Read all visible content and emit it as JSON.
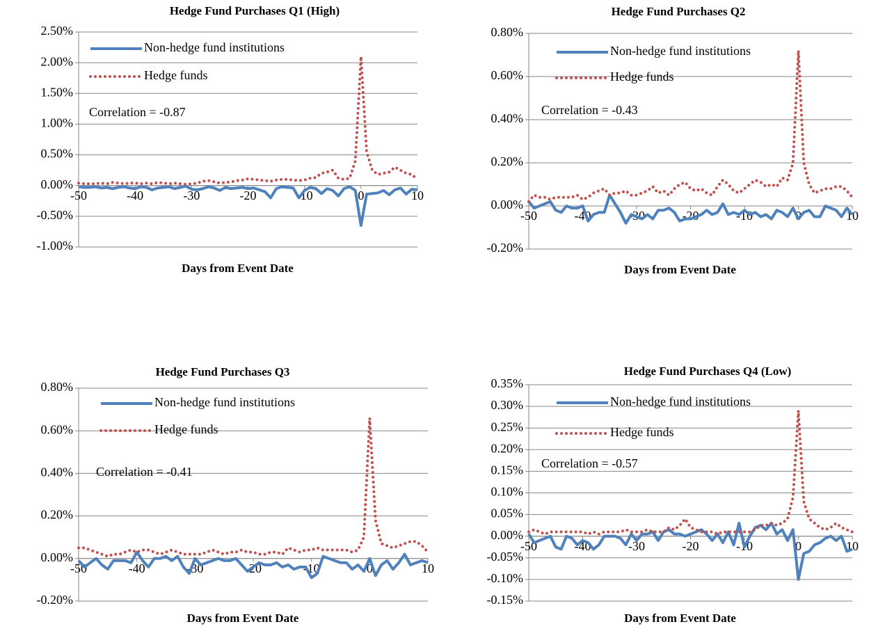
{
  "chart_data": [
    {
      "type": "line",
      "title": "Hedge Fund Purchases Q1 (High)",
      "x_label": "Days from Event Date",
      "annotation": "Correlation  = -0.87",
      "x": [
        -50,
        -49,
        -48,
        -47,
        -46,
        -45,
        -44,
        -43,
        -42,
        -41,
        -40,
        -39,
        -38,
        -37,
        -36,
        -35,
        -34,
        -33,
        -32,
        -31,
        -30,
        -29,
        -28,
        -27,
        -26,
        -25,
        -24,
        -23,
        -22,
        -21,
        -20,
        -19,
        -18,
        -17,
        -16,
        -15,
        -14,
        -13,
        -12,
        -11,
        -10,
        -9,
        -8,
        -7,
        -6,
        -5,
        -4,
        -3,
        -2,
        -1,
        0,
        1,
        2,
        3,
        4,
        5,
        6,
        7,
        8,
        9,
        10
      ],
      "xlim": [
        -50,
        10
      ],
      "xticks": [
        -50,
        -40,
        -30,
        -20,
        -10,
        0,
        10
      ],
      "ylim": [
        -1,
        2.5
      ],
      "yticks": [
        {
          "value": 2.5,
          "label": "2.50%"
        },
        {
          "value": 2,
          "label": "2.00%"
        },
        {
          "value": 1.5,
          "label": "1.50%"
        },
        {
          "value": 1,
          "label": "1.00%"
        },
        {
          "value": 0.5,
          "label": "0.50%"
        },
        {
          "value": 0,
          "label": "0.00%"
        },
        {
          "value": -0.5,
          "label": "-0.50%"
        },
        {
          "value": -1,
          "label": "-1.00%"
        }
      ],
      "grid": true,
      "series": [
        {
          "name": "Non-hedge fund institutions",
          "color": "#4f81bd",
          "style": "solid",
          "values": [
            -0.02,
            -0.03,
            -0.03,
            -0.02,
            -0.04,
            -0.03,
            -0.05,
            -0.03,
            -0.02,
            -0.04,
            -0.05,
            -0.02,
            -0.03,
            -0.07,
            -0.04,
            -0.03,
            -0.02,
            -0.05,
            -0.03,
            -0.01,
            -0.06,
            -0.07,
            -0.05,
            -0.02,
            -0.04,
            -0.08,
            -0.03,
            -0.05,
            -0.04,
            -0.03,
            -0.05,
            -0.04,
            -0.07,
            -0.1,
            -0.2,
            -0.05,
            -0.02,
            -0.03,
            -0.04,
            -0.2,
            -0.08,
            -0.03,
            -0.05,
            -0.13,
            -0.05,
            -0.08,
            -0.17,
            -0.05,
            -0.02,
            -0.08,
            -0.65,
            -0.14,
            -0.13,
            -0.12,
            -0.08,
            -0.15,
            -0.07,
            -0.04,
            -0.14,
            -0.06,
            -0.07
          ]
        },
        {
          "name": "Hedge funds",
          "color": "#c0504d",
          "style": "dotted",
          "values": [
            0.04,
            0.03,
            0.03,
            0.03,
            0.04,
            0.03,
            0.05,
            0.04,
            0.03,
            0.04,
            0.04,
            0.03,
            0.04,
            0.03,
            0.05,
            0.04,
            0.03,
            0.04,
            0.03,
            0.02,
            0.03,
            0.04,
            0.07,
            0.08,
            0.06,
            0.04,
            0.05,
            0.06,
            0.08,
            0.09,
            0.11,
            0.1,
            0.09,
            0.08,
            0.07,
            0.09,
            0.1,
            0.1,
            0.09,
            0.08,
            0.09,
            0.12,
            0.13,
            0.2,
            0.22,
            0.25,
            0.12,
            0.1,
            0.12,
            0.4,
            2.1,
            0.55,
            0.25,
            0.18,
            0.2,
            0.22,
            0.3,
            0.25,
            0.2,
            0.18,
            0.1
          ]
        }
      ]
    },
    {
      "type": "line",
      "title": "Hedge Fund Purchases Q2",
      "x_label": "Days from Event Date",
      "annotation": "Correlation  = -0.43",
      "x": [
        -50,
        -49,
        -48,
        -47,
        -46,
        -45,
        -44,
        -43,
        -42,
        -41,
        -40,
        -39,
        -38,
        -37,
        -36,
        -35,
        -34,
        -33,
        -32,
        -31,
        -30,
        -29,
        -28,
        -27,
        -26,
        -25,
        -24,
        -23,
        -22,
        -21,
        -20,
        -19,
        -18,
        -17,
        -16,
        -15,
        -14,
        -13,
        -12,
        -11,
        -10,
        -9,
        -8,
        -7,
        -6,
        -5,
        -4,
        -3,
        -2,
        -1,
        0,
        1,
        2,
        3,
        4,
        5,
        6,
        7,
        8,
        9,
        10
      ],
      "xlim": [
        -50,
        10
      ],
      "xticks": [
        -50,
        -40,
        -30,
        -20,
        -10,
        0,
        10
      ],
      "ylim": [
        -0.2,
        0.8
      ],
      "yticks": [
        {
          "value": 0.8,
          "label": "0.80%"
        },
        {
          "value": 0.6,
          "label": "0.60%"
        },
        {
          "value": 0.4,
          "label": "0.40%"
        },
        {
          "value": 0.2,
          "label": "0.20%"
        },
        {
          "value": 0,
          "label": "0.00%"
        },
        {
          "value": -0.2,
          "label": "-0.20%"
        }
      ],
      "grid": true,
      "series": [
        {
          "name": "Non-hedge fund institutions",
          "color": "#4f81bd",
          "style": "solid",
          "values": [
            0.02,
            -0.01,
            0,
            0.01,
            0.02,
            -0.02,
            -0.03,
            0,
            -0.01,
            -0.01,
            0,
            -0.07,
            -0.04,
            -0.03,
            -0.03,
            0.05,
            0.01,
            -0.03,
            -0.08,
            -0.04,
            -0.05,
            -0.06,
            -0.04,
            -0.06,
            -0.02,
            -0.02,
            -0.01,
            -0.03,
            -0.07,
            -0.06,
            -0.06,
            -0.05,
            -0.04,
            -0.02,
            -0.04,
            -0.03,
            0.01,
            -0.04,
            -0.03,
            -0.04,
            -0.02,
            -0.04,
            -0.03,
            -0.05,
            -0.04,
            -0.06,
            -0.02,
            -0.03,
            -0.05,
            -0.01,
            -0.06,
            -0.03,
            -0.02,
            -0.05,
            -0.05,
            0,
            -0.01,
            -0.02,
            -0.05,
            -0.01,
            -0.04
          ]
        },
        {
          "name": "Hedge funds",
          "color": "#c0504d",
          "style": "dotted",
          "values": [
            0.02,
            0.05,
            0.04,
            0.04,
            0.03,
            0.04,
            0.04,
            0.04,
            0.04,
            0.05,
            0.03,
            0.04,
            0.06,
            0.07,
            0.08,
            0.05,
            0.06,
            0.06,
            0.07,
            0.05,
            0.05,
            0.06,
            0.07,
            0.09,
            0.06,
            0.07,
            0.05,
            0.08,
            0.1,
            0.11,
            0.08,
            0.07,
            0.08,
            0.06,
            0.05,
            0.09,
            0.12,
            0.1,
            0.07,
            0.06,
            0.08,
            0.1,
            0.12,
            0.11,
            0.09,
            0.1,
            0.09,
            0.13,
            0.12,
            0.2,
            0.72,
            0.2,
            0.1,
            0.06,
            0.07,
            0.08,
            0.08,
            0.09,
            0.09,
            0.07,
            0.04
          ]
        }
      ]
    },
    {
      "type": "line",
      "title": "Hedge Fund Purchases Q3",
      "x_label": "Days from Event Date",
      "annotation": "Correlation  = -0.41",
      "x": [
        -50,
        -49,
        -48,
        -47,
        -46,
        -45,
        -44,
        -43,
        -42,
        -41,
        -40,
        -39,
        -38,
        -37,
        -36,
        -35,
        -34,
        -33,
        -32,
        -31,
        -30,
        -29,
        -28,
        -27,
        -26,
        -25,
        -24,
        -23,
        -22,
        -21,
        -20,
        -19,
        -18,
        -17,
        -16,
        -15,
        -14,
        -13,
        -12,
        -11,
        -10,
        -9,
        -8,
        -7,
        -6,
        -5,
        -4,
        -3,
        -2,
        -1,
        0,
        1,
        2,
        3,
        4,
        5,
        6,
        7,
        8,
        9,
        10
      ],
      "xlim": [
        -50,
        10
      ],
      "xticks": [
        -50,
        -40,
        -30,
        -20,
        -10,
        0,
        10
      ],
      "ylim": [
        -0.2,
        0.8
      ],
      "yticks": [
        {
          "value": 0.8,
          "label": "0.80%"
        },
        {
          "value": 0.6,
          "label": "0.60%"
        },
        {
          "value": 0.4,
          "label": "0.40%"
        },
        {
          "value": 0.2,
          "label": "0.20%"
        },
        {
          "value": 0,
          "label": "0.00%"
        },
        {
          "value": -0.2,
          "label": "-0.20%"
        }
      ],
      "grid": true,
      "series": [
        {
          "name": "Non-hedge fund institutions",
          "color": "#4f81bd",
          "style": "solid",
          "values": [
            -0.01,
            -0.04,
            -0.02,
            0,
            -0.03,
            -0.05,
            -0.01,
            -0.01,
            -0.01,
            -0.02,
            0.03,
            -0.01,
            -0.04,
            0,
            0,
            0.01,
            -0.01,
            0.01,
            -0.04,
            -0.07,
            0,
            -0.03,
            -0.02,
            -0.01,
            0,
            -0.01,
            -0.01,
            0,
            -0.03,
            -0.06,
            -0.04,
            -0.02,
            -0.03,
            -0.03,
            -0.02,
            -0.04,
            -0.03,
            -0.05,
            -0.04,
            -0.04,
            -0.09,
            -0.07,
            0.01,
            0,
            -0.01,
            -0.02,
            -0.02,
            -0.05,
            -0.03,
            -0.06,
            0,
            -0.08,
            -0.03,
            -0.01,
            -0.05,
            -0.02,
            0.02,
            -0.03,
            -0.02,
            -0.01,
            -0.02
          ]
        },
        {
          "name": "Hedge funds",
          "color": "#c0504d",
          "style": "dotted",
          "values": [
            0.05,
            0.05,
            0.04,
            0.03,
            0.02,
            0.01,
            0.02,
            0.02,
            0.03,
            0.04,
            0.03,
            0.04,
            0.04,
            0.03,
            0.02,
            0.03,
            0.04,
            0.03,
            0.02,
            0.02,
            0.02,
            0.02,
            0.03,
            0.04,
            0.03,
            0.02,
            0.03,
            0.03,
            0.04,
            0.03,
            0.03,
            0.02,
            0.02,
            0.03,
            0.03,
            0.02,
            0.05,
            0.04,
            0.03,
            0.04,
            0.04,
            0.05,
            0.04,
            0.04,
            0.04,
            0.04,
            0.04,
            0.03,
            0.04,
            0.1,
            0.66,
            0.18,
            0.07,
            0.06,
            0.05,
            0.06,
            0.07,
            0.08,
            0.08,
            0.06,
            0.03
          ]
        }
      ]
    },
    {
      "type": "line",
      "title": "Hedge Fund Purchases Q4 (Low)",
      "x_label": "Days from Event Date",
      "annotation": "Correlation  = -0.57",
      "x": [
        -50,
        -49,
        -48,
        -47,
        -46,
        -45,
        -44,
        -43,
        -42,
        -41,
        -40,
        -39,
        -38,
        -37,
        -36,
        -35,
        -34,
        -33,
        -32,
        -31,
        -30,
        -29,
        -28,
        -27,
        -26,
        -25,
        -24,
        -23,
        -22,
        -21,
        -20,
        -19,
        -18,
        -17,
        -16,
        -15,
        -14,
        -13,
        -12,
        -11,
        -10,
        -9,
        -8,
        -7,
        -6,
        -5,
        -4,
        -3,
        -2,
        -1,
        0,
        1,
        2,
        3,
        4,
        5,
        6,
        7,
        8,
        9,
        10
      ],
      "xlim": [
        -50,
        10
      ],
      "xticks": [
        -50,
        -40,
        -30,
        -20,
        -10,
        0,
        10
      ],
      "ylim": [
        -0.15,
        0.35
      ],
      "yticks": [
        {
          "value": 0.35,
          "label": "0.35%"
        },
        {
          "value": 0.3,
          "label": "0.30%"
        },
        {
          "value": 0.25,
          "label": "0.25%"
        },
        {
          "value": 0.2,
          "label": "0.20%"
        },
        {
          "value": 0.15,
          "label": "0.15%"
        },
        {
          "value": 0.1,
          "label": "0.10%"
        },
        {
          "value": 0.05,
          "label": "0.05%"
        },
        {
          "value": 0,
          "label": "0.00%"
        },
        {
          "value": -0.05,
          "label": "-0.05%"
        },
        {
          "value": -0.1,
          "label": "-0.10%"
        },
        {
          "value": -0.15,
          "label": "-0.15%"
        }
      ],
      "grid": true,
      "series": [
        {
          "name": "Non-hedge fund institutions",
          "color": "#4f81bd",
          "style": "solid",
          "values": [
            0.005,
            -0.015,
            -0.01,
            -0.005,
            0,
            -0.025,
            -0.03,
            0,
            -0.005,
            -0.02,
            -0.01,
            -0.015,
            -0.03,
            -0.02,
            0,
            0,
            0,
            -0.005,
            -0.02,
            0.005,
            -0.01,
            0.005,
            0.005,
            0.01,
            -0.01,
            0.01,
            0.015,
            0.005,
            0.005,
            0,
            0.005,
            0.01,
            0.015,
            0.005,
            -0.01,
            0.005,
            -0.015,
            0.01,
            -0.02,
            0.03,
            -0.025,
            0,
            0.02,
            0.025,
            0.015,
            0.03,
            0.005,
            0.015,
            -0.01,
            0.015,
            -0.1,
            -0.04,
            -0.035,
            -0.02,
            -0.015,
            -0.005,
            0,
            -0.01,
            0,
            -0.035,
            -0.03
          ]
        },
        {
          "name": "Hedge funds",
          "color": "#c0504d",
          "style": "dotted",
          "values": [
            0.01,
            0.015,
            0.01,
            0.005,
            0.01,
            0.01,
            0.01,
            0.01,
            0.01,
            0.01,
            0.01,
            0.005,
            0.01,
            0.005,
            0.01,
            0.01,
            0.01,
            0.01,
            0.015,
            0.01,
            0.01,
            0.01,
            0.015,
            0.01,
            0.01,
            0.01,
            0.02,
            0.015,
            0.025,
            0.04,
            0.02,
            0.015,
            0.01,
            0.01,
            0.01,
            0.005,
            0.01,
            0.01,
            0.01,
            0.01,
            0.01,
            0.01,
            0.015,
            0.025,
            0.025,
            0.03,
            0.025,
            0.03,
            0.04,
            0.09,
            0.29,
            0.08,
            0.04,
            0.03,
            0.02,
            0.015,
            0.02,
            0.03,
            0.02,
            0.015,
            0.01
          ]
        }
      ]
    }
  ]
}
